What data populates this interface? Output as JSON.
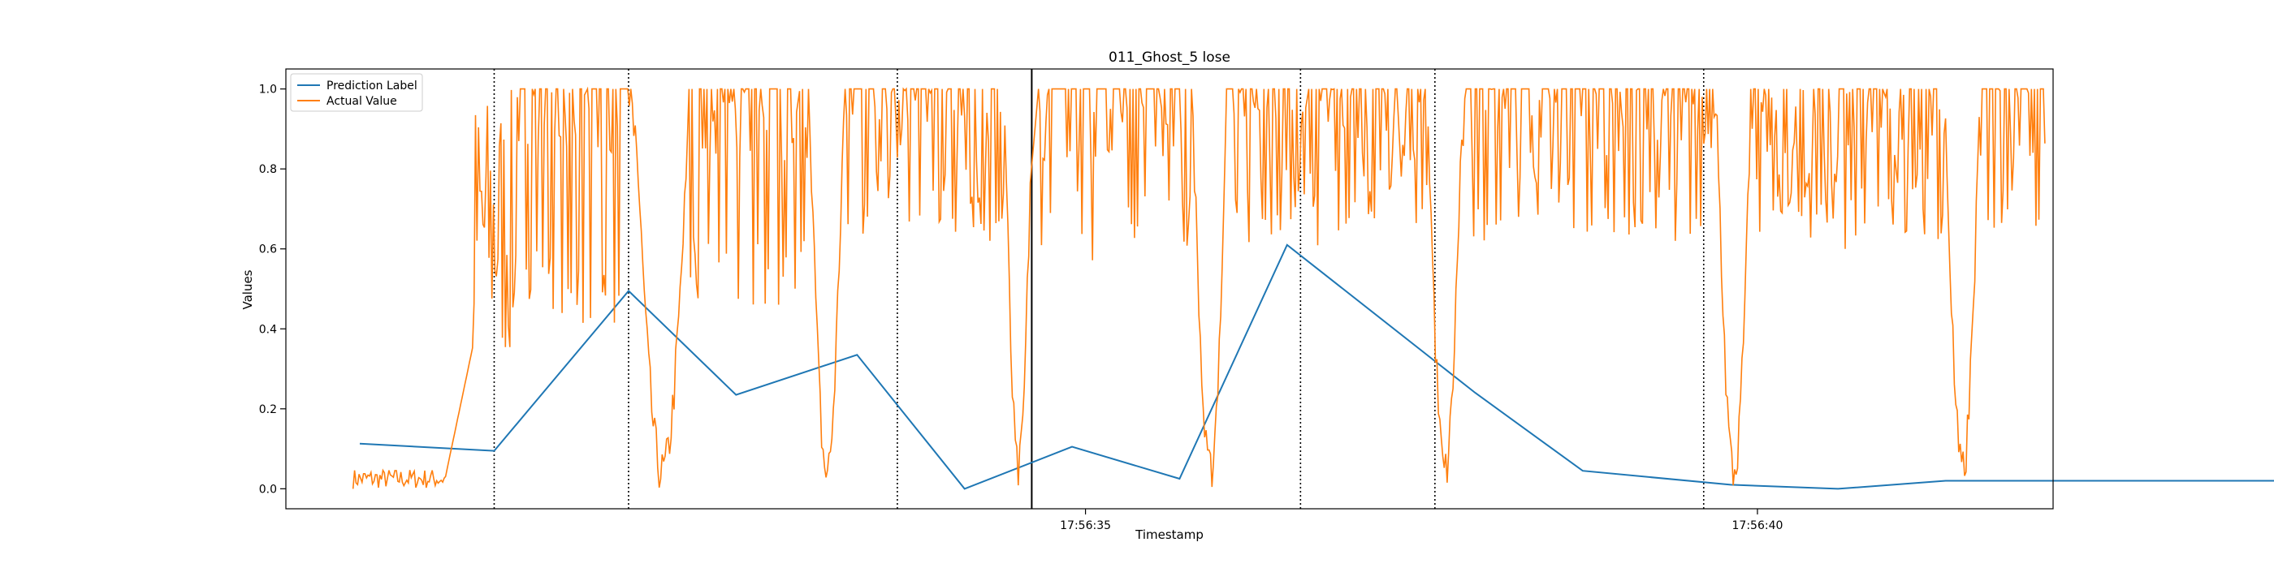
{
  "chart_data": {
    "type": "line",
    "title": "011_Ghost_5 lose",
    "xlabel": "Timestamp",
    "ylabel": "Values",
    "x_tick_labels": [
      "17:56:35",
      "17:56:40"
    ],
    "x_tick_values": [
      35.0,
      40.0
    ],
    "x_range_seconds": [
      29.05,
      42.2
    ],
    "ylim": [
      -0.05,
      1.05
    ],
    "y_ticks": [
      0.0,
      0.2,
      0.4,
      0.6,
      0.8,
      1.0
    ],
    "y_tick_labels": [
      "0.0",
      "0.2",
      "0.4",
      "0.6",
      "0.8",
      "1.0"
    ],
    "grid": false,
    "legend_position": "upper left",
    "series": [
      {
        "name": "Prediction Label",
        "color": "#1f77b4",
        "x": [
          29.6,
          30.6,
          31.6,
          32.4,
          33.3,
          34.1,
          34.9,
          35.7,
          36.5,
          37.9,
          38.7,
          39.8,
          40.6,
          41.4,
          42.2,
          43.0,
          43.9
        ],
        "y": [
          0.113,
          0.095,
          0.495,
          0.235,
          0.335,
          0.0,
          0.105,
          0.025,
          0.61,
          0.24,
          0.045,
          0.01,
          0.0,
          0.02,
          0.02,
          0.02,
          0.02
        ]
      },
      {
        "name": "Actual Value",
        "color": "#ff7f0e",
        "x": [],
        "y": []
      }
    ],
    "vertical_lines": [
      {
        "x": 30.6,
        "style": "dotted"
      },
      {
        "x": 31.6,
        "style": "dotted"
      },
      {
        "x": 33.6,
        "style": "dotted"
      },
      {
        "x": 34.6,
        "style": "solid"
      },
      {
        "x": 36.6,
        "style": "dotted"
      },
      {
        "x": 37.6,
        "style": "dotted"
      },
      {
        "x": 39.6,
        "style": "dotted"
      }
    ]
  },
  "figure": {
    "title": "011_Ghost_5 lose",
    "xlabel": "Timestamp",
    "ylabel": "Values"
  }
}
